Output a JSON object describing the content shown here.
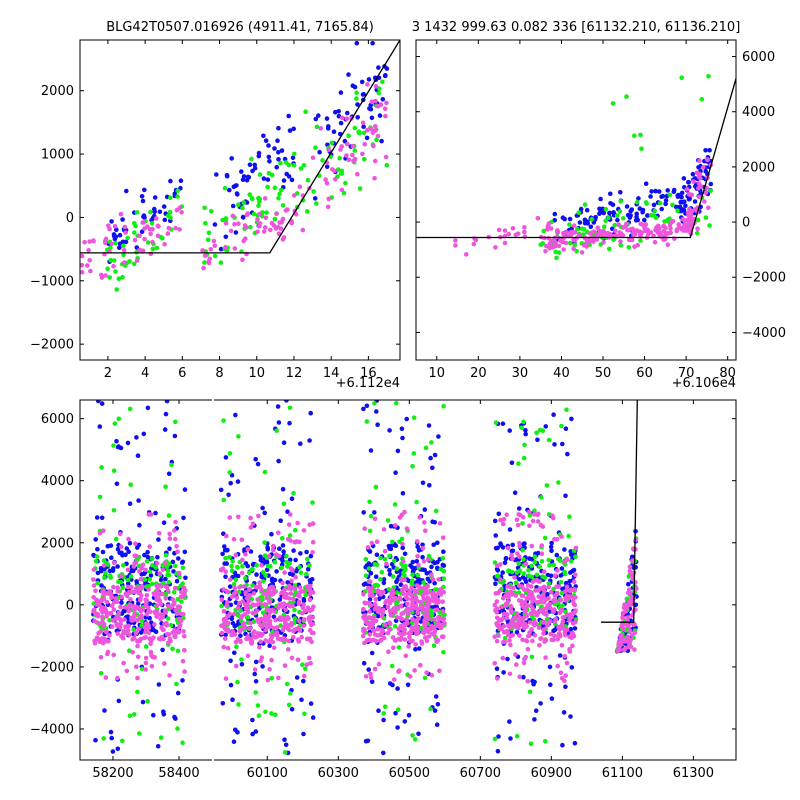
{
  "chart_data": [
    {
      "id": "top-left",
      "type": "scatter",
      "title": "BLG42T0507.016926 (4911.41, 7165.84)",
      "x_offset_label": "+6.112e4",
      "xlim": [
        0.5,
        17.7
      ],
      "ylim": [
        -2250,
        2800
      ],
      "xticks": [
        2,
        4,
        6,
        8,
        10,
        12,
        14,
        16
      ],
      "yticks": [
        -2000,
        -1000,
        0,
        1000,
        2000
      ],
      "ytick_side": "left",
      "model_line": [
        [
          0.5,
          -560
        ],
        [
          10.7,
          -560
        ],
        [
          17.7,
          2800
        ]
      ],
      "series": [
        {
          "name": "blue",
          "color": "#1010ee",
          "seed": 11,
          "clusters": [
            {
              "x": [
                1.8,
                6
              ],
              "y": [
                -700,
                800
              ],
              "n": 45
            },
            {
              "x": [
                7.5,
                12
              ],
              "y": [
                -500,
                1600
              ],
              "n": 60
            },
            {
              "x": [
                13,
                17
              ],
              "y": [
                300,
                2750
              ],
              "n": 60
            }
          ]
        },
        {
          "name": "green",
          "color": "#11ee11",
          "seed": 23,
          "clusters": [
            {
              "x": [
                1.8,
                6
              ],
              "y": [
                -1200,
                600
              ],
              "n": 45
            },
            {
              "x": [
                7,
                12
              ],
              "y": [
                -900,
                1100
              ],
              "n": 55
            },
            {
              "x": [
                12,
                17
              ],
              "y": [
                -300,
                2300
              ],
              "n": 50
            }
          ]
        },
        {
          "name": "magenta",
          "color": "#ee55dd",
          "seed": 37,
          "clusters": [
            {
              "x": [
                0.5,
                6
              ],
              "y": [
                -1000,
                300
              ],
              "n": 55
            },
            {
              "x": [
                7,
                12
              ],
              "y": [
                -800,
                300
              ],
              "n": 50
            },
            {
              "x": [
                12,
                17
              ],
              "y": [
                -200,
                2100
              ],
              "n": 55
            }
          ]
        }
      ]
    },
    {
      "id": "top-right",
      "type": "scatter",
      "title": "3 1432 999.63 0.082 336 [61132.210, 61136.210]",
      "x_offset_label": "+6.106e4",
      "xlim": [
        5,
        82
      ],
      "ylim": [
        -5000,
        6600
      ],
      "xticks": [
        10,
        20,
        30,
        40,
        50,
        60,
        70,
        80
      ],
      "yticks": [
        -4000,
        -2000,
        0,
        2000,
        4000,
        6000
      ],
      "ytick_side": "right",
      "model_line": [
        [
          5,
          -560
        ],
        [
          71,
          -560
        ],
        [
          82,
          5200
        ]
      ],
      "series": [
        {
          "name": "blue",
          "color": "#1010ee",
          "seed": 51,
          "clusters": [
            {
              "x": [
                38,
                70
              ],
              "y": [
                -800,
                1500
              ],
              "n": 110
            },
            {
              "x": [
                68,
                76
              ],
              "y": [
                -400,
                2600
              ],
              "n": 60
            }
          ]
        },
        {
          "name": "green",
          "color": "#11ee11",
          "seed": 63,
          "clusters": [
            {
              "x": [
                35,
                76
              ],
              "y": [
                -1300,
                1300
              ],
              "n": 80
            },
            {
              "x": [
                45,
                76
              ],
              "y": [
                2000,
                6400
              ],
              "n": 8
            }
          ]
        },
        {
          "name": "magenta",
          "color": "#ee55dd",
          "seed": 77,
          "clusters": [
            {
              "x": [
                12,
                38
              ],
              "y": [
                -1500,
                300
              ],
              "n": 25
            },
            {
              "x": [
                35,
                72
              ],
              "y": [
                -1100,
                100
              ],
              "n": 170
            },
            {
              "x": [
                70,
                76
              ],
              "y": [
                -500,
                2700
              ],
              "n": 40
            }
          ]
        }
      ]
    },
    {
      "id": "bottom",
      "type": "scatter",
      "title": "",
      "xlim": [
        58100,
        61420
      ],
      "ylim": [
        -5000,
        6600
      ],
      "xticks": [
        58200,
        58400,
        60100,
        60300,
        60500,
        60700,
        60900,
        61100,
        61300
      ],
      "yticks": [
        -4000,
        -2000,
        0,
        2000,
        4000,
        6000
      ],
      "ytick_side": "left",
      "axis_break": {
        "gap_start_value": 58500,
        "gap_end_value": 59950
      },
      "model_line": [
        [
          61040,
          -560
        ],
        [
          61132,
          -560
        ],
        [
          61142,
          6600
        ]
      ],
      "seasons": [
        {
          "x": [
            58140,
            58420
          ]
        },
        {
          "x": [
            59970,
            60230
          ]
        },
        {
          "x": [
            60370,
            60600
          ]
        },
        {
          "x": [
            60740,
            60970
          ]
        },
        {
          "x": [
            61085,
            61140
          ]
        }
      ],
      "series": [
        {
          "name": "blue",
          "color": "#1010ee",
          "seed": 101,
          "core": [
            -1000,
            2000
          ],
          "wide": [
            -4800,
            6600
          ],
          "per_season": 260
        },
        {
          "name": "green",
          "color": "#11ee11",
          "seed": 131,
          "core": [
            -800,
            1600
          ],
          "wide": [
            -4800,
            6600
          ],
          "per_season": 140
        },
        {
          "name": "magenta",
          "color": "#ee55dd",
          "seed": 157,
          "core": [
            -1200,
            600
          ],
          "wide": [
            -2500,
            3000
          ],
          "per_season": 320
        }
      ]
    }
  ]
}
